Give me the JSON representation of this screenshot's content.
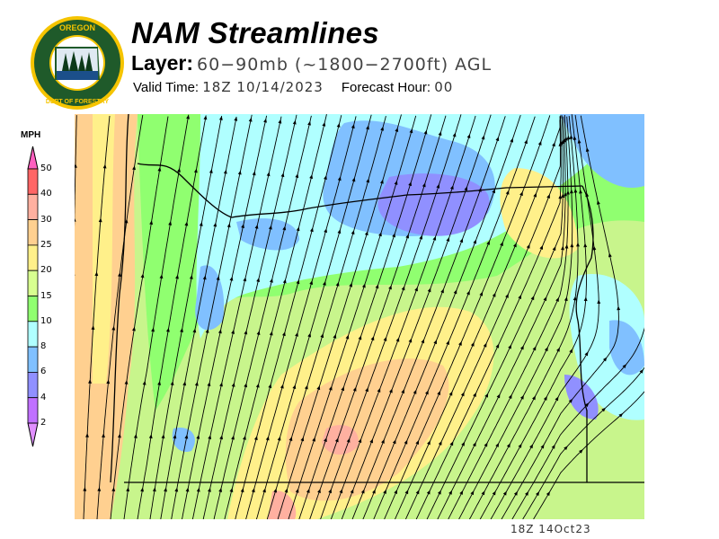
{
  "logo": {
    "top_text": "OREGON",
    "bottom_text": "DEPARTMENT OF FORESTRY"
  },
  "header": {
    "title": "NAM Streamlines",
    "layer_label": "Layer:",
    "layer_value": "60−90mb (~1800−2700ft) AGL",
    "valid_label": "Valid Time:",
    "valid_value": "18Z 10/14/2023",
    "forecast_label": "Forecast Hour:",
    "forecast_value": "00"
  },
  "legend": {
    "units": "MPH",
    "bins": [
      {
        "label": "50",
        "color": "#ff60c0"
      },
      {
        "label": "40",
        "color": "#ff6666"
      },
      {
        "label": "30",
        "color": "#ffb0a0"
      },
      {
        "label": "25",
        "color": "#ffd090"
      },
      {
        "label": "20",
        "color": "#fff08a"
      },
      {
        "label": "15",
        "color": "#d8ff90"
      },
      {
        "label": "10",
        "color": "#90ff70"
      },
      {
        "label": "8",
        "color": "#b0ffff"
      },
      {
        "label": "6",
        "color": "#80c0ff"
      },
      {
        "label": "4",
        "color": "#9090ff"
      },
      {
        "label": "2",
        "color": "#c070ff"
      }
    ],
    "below_color": "#e090ff"
  },
  "footer": {
    "stamp": "18Z 14Oct23"
  }
}
